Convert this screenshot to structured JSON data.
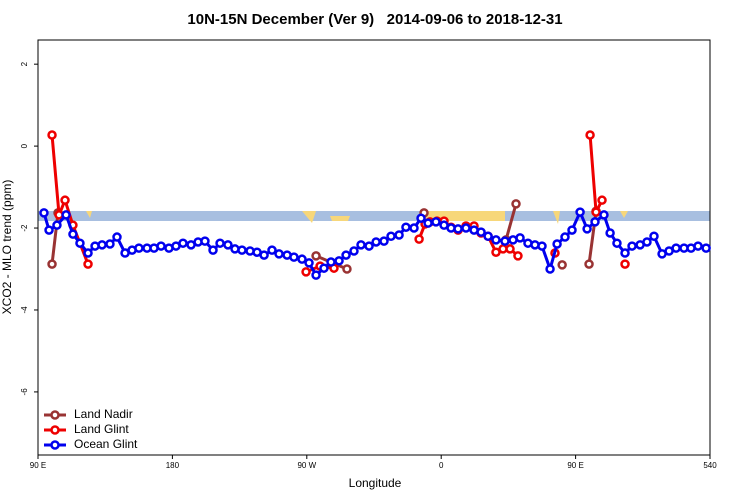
{
  "chart_data": {
    "type": "line",
    "title": "10N-15N December (Ver 9)   2014-09-06 to 2018-12-31",
    "x_label": "Longitude",
    "y_label": "XCO2 - MLO trend (ppm)",
    "xlim": [
      90,
      540
    ],
    "ylim": [
      -7.54,
      2.59
    ],
    "xticks": [
      {
        "value": 90,
        "label": "90 E"
      },
      180,
      {
        "value": 270,
        "label": "90 W"
      },
      {
        "value": 360,
        "label": "0"
      },
      {
        "value": 450,
        "label": "90 E"
      },
      540
    ],
    "yticks": [
      2,
      0,
      -2,
      -4,
      -6
    ],
    "legend": "bottom-left",
    "series": [
      {
        "name": "Land Nadir",
        "color": "#993333",
        "x": [
          99.4,
          103.4,
          null,
          276.2,
          296.9,
          null,
          348.5,
          null,
          403.4,
          410.1,
          null,
          441.0,
          null,
          459.0,
          463.7
        ],
        "values": [
          -2.88,
          -1.63,
          null,
          -2.68,
          -3.0,
          null,
          -1.63,
          null,
          -2.29,
          -1.41,
          null,
          -2.9,
          null,
          -2.88,
          -1.59
        ]
      },
      {
        "name": "Land Glint",
        "color": "#ee0000",
        "x": [
          99.4,
          104.1,
          108.1,
          113.4,
          123.5,
          null,
          269.5,
          278.9,
          288.2,
          null,
          345.2,
          349.2,
          352.5,
          357.2,
          361.9,
          366.6,
          371.3,
          376.6,
          382.0,
          386.7,
          391.4,
          396.7,
          401.4,
          406.1,
          411.4,
          null,
          436.2,
          null,
          459.7,
          463.7,
          467.7,
          null,
          483.1
        ],
        "values": [
          0.27,
          -1.68,
          -1.32,
          -1.93,
          -2.88,
          null,
          -3.07,
          -2.93,
          -2.98,
          null,
          -2.27,
          -1.9,
          -1.85,
          -1.83,
          -1.83,
          -1.98,
          -2.05,
          -1.95,
          -1.95,
          -2.12,
          -2.2,
          -2.59,
          -2.51,
          -2.51,
          -2.68,
          null,
          -2.61,
          null,
          0.27,
          -1.61,
          -1.32,
          null,
          -2.88
        ]
      },
      {
        "name": "Ocean Glint",
        "color": "#0000ee",
        "x": [
          94.0,
          97.4,
          102.7,
          108.8,
          113.4,
          118.1,
          123.5,
          128.2,
          132.9,
          138.2,
          142.9,
          148.3,
          153.0,
          157.6,
          163.0,
          167.7,
          172.4,
          177.7,
          182.4,
          187.1,
          192.5,
          197.2,
          201.8,
          207.2,
          211.9,
          217.2,
          221.9,
          226.6,
          232.0,
          236.7,
          241.4,
          246.7,
          251.4,
          256.8,
          261.4,
          266.8,
          271.5,
          276.2,
          281.5,
          286.2,
          291.6,
          296.3,
          301.6,
          306.3,
          311.7,
          316.4,
          321.7,
          326.4,
          331.8,
          336.4,
          341.8,
          346.5,
          351.2,
          356.5,
          361.9,
          366.6,
          371.3,
          376.6,
          382.0,
          386.7,
          391.4,
          396.7,
          402.7,
          408.1,
          412.8,
          418.1,
          422.8,
          427.5,
          432.9,
          437.6,
          442.9,
          447.6,
          453.0,
          457.7,
          463.0,
          469.0,
          473.1,
          477.7,
          483.1,
          487.8,
          493.2,
          497.8,
          502.5,
          507.9,
          512.6,
          517.3,
          522.6,
          527.3,
          532.0,
          537.4
        ],
        "values": [
          -1.63,
          -2.05,
          -1.93,
          -1.68,
          -2.15,
          -2.37,
          -2.61,
          -2.44,
          -2.41,
          -2.39,
          -2.22,
          -2.61,
          -2.54,
          -2.49,
          -2.49,
          -2.49,
          -2.44,
          -2.49,
          -2.44,
          -2.37,
          -2.41,
          -2.34,
          -2.32,
          -2.54,
          -2.37,
          -2.41,
          -2.51,
          -2.54,
          -2.56,
          -2.59,
          -2.66,
          -2.54,
          -2.63,
          -2.66,
          -2.71,
          -2.76,
          -2.85,
          -3.15,
          -2.98,
          -2.83,
          -2.8,
          -2.66,
          -2.56,
          -2.41,
          -2.44,
          -2.34,
          -2.32,
          -2.2,
          -2.17,
          -1.98,
          -2.0,
          -1.76,
          -1.88,
          -1.85,
          -1.93,
          -2.0,
          -2.02,
          -2.0,
          -2.05,
          -2.1,
          -2.2,
          -2.29,
          -2.32,
          -2.29,
          -2.24,
          -2.37,
          -2.41,
          -2.44,
          -3.0,
          -2.39,
          -2.22,
          -2.05,
          -1.61,
          -2.02,
          -1.85,
          -1.68,
          -2.12,
          -2.37,
          -2.61,
          -2.44,
          -2.41,
          -2.34,
          -2.2,
          -2.63,
          -2.56,
          -2.49,
          -2.49,
          -2.49,
          -2.44,
          -2.49
        ]
      }
    ]
  }
}
